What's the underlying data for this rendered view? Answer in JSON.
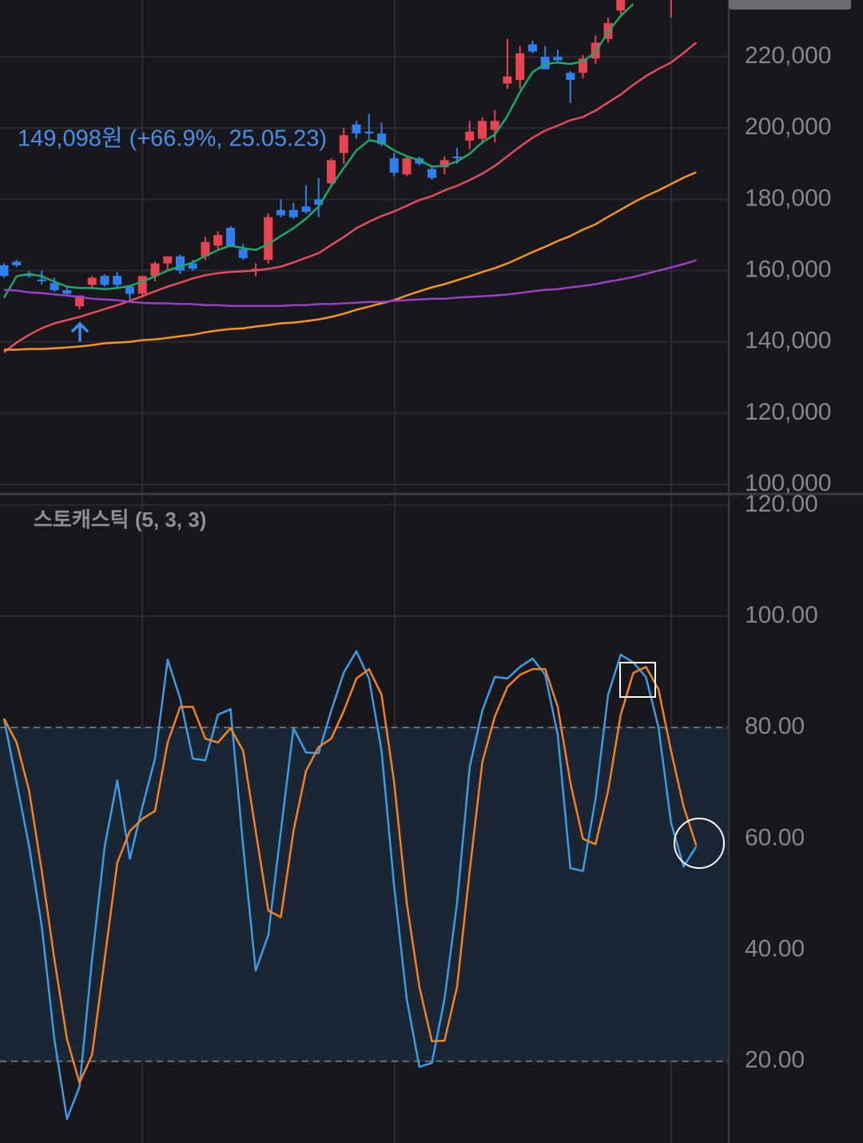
{
  "chart_data": [
    {
      "type": "candlestick",
      "annotations": [
        {
          "text": "149,098원 (+66.9%, 25.05.23)"
        }
      ],
      "categories": [
        null,
        null,
        null,
        null,
        null,
        null,
        null,
        null,
        null,
        null,
        null,
        null,
        null,
        null,
        null,
        null,
        null,
        null,
        null,
        null,
        null,
        null,
        null,
        null,
        null,
        null,
        null,
        null,
        null,
        null,
        null,
        null,
        null,
        null,
        null,
        null,
        null,
        null,
        null,
        null,
        null,
        null,
        null,
        null,
        null,
        null,
        null,
        null,
        null,
        null,
        null,
        null,
        null,
        null,
        null,
        null
      ],
      "open": [
        161500,
        162500,
        159000,
        157500,
        156500,
        154500,
        150000,
        156000,
        158500,
        158500,
        155500,
        153500,
        158500,
        162000,
        164000,
        162000,
        164000,
        167000,
        172000,
        166000,
        160000,
        163000,
        177000,
        177000,
        178000,
        180000,
        184500,
        193000,
        201000,
        199000,
        198500,
        191500,
        187000,
        191500,
        188500,
        189000,
        192000,
        196500,
        197000,
        199500,
        212500,
        213500,
        223500,
        220000,
        220000,
        215500,
        215500,
        219500,
        225000,
        233000,
        null,
        null,
        null,
        236500,
        null,
        null
      ],
      "high": [
        162000,
        163000,
        160000,
        160000,
        158000,
        155500,
        153000,
        158500,
        159000,
        159500,
        156000,
        158500,
        162500,
        164000,
        164500,
        163000,
        169500,
        171000,
        172500,
        167500,
        162000,
        176000,
        180000,
        179000,
        184000,
        186000,
        191500,
        200000,
        202000,
        204000,
        201500,
        193000,
        192000,
        192000,
        189500,
        192000,
        194500,
        202000,
        203000,
        205000,
        225000,
        223000,
        224500,
        223000,
        222000,
        216000,
        220500,
        226000,
        231000,
        236500,
        null,
        null,
        null,
        240000,
        null,
        null
      ],
      "low": [
        158000,
        161000,
        158000,
        156000,
        154000,
        153000,
        149098,
        155000,
        155500,
        155000,
        151000,
        152500,
        157000,
        160000,
        159000,
        160000,
        163000,
        166000,
        166500,
        163000,
        158500,
        162000,
        175000,
        174500,
        176000,
        175000,
        183500,
        190000,
        197000,
        197000,
        195000,
        186500,
        186500,
        189500,
        185500,
        187000,
        190000,
        194000,
        195500,
        196000,
        211000,
        211000,
        221000,
        216500,
        218500,
        207000,
        214000,
        218000,
        224000,
        232000,
        null,
        null,
        null,
        231000,
        null,
        null
      ],
      "close": [
        158500,
        161500,
        158500,
        157000,
        154500,
        153500,
        153000,
        158000,
        156000,
        156000,
        153500,
        158500,
        162000,
        164000,
        160000,
        160500,
        168000,
        170000,
        167000,
        163500,
        160500,
        175000,
        175500,
        175000,
        176500,
        178500,
        191000,
        198000,
        198500,
        198500,
        195500,
        187500,
        191500,
        190000,
        186000,
        191000,
        191800,
        199000,
        202000,
        202000,
        214500,
        221000,
        221500,
        216500,
        219000,
        213500,
        219500,
        224000,
        229500,
        236000,
        null,
        null,
        null,
        239000,
        null,
        null
      ],
      "up_color": "#e8434f",
      "down_color": "#2f7ff0",
      "series": [
        {
          "color": "#1ea86a",
          "values": [
            152400,
            158400,
            159100,
            158400,
            156900,
            155500,
            155100,
            155100,
            154800,
            155100,
            155700,
            156900,
            158400,
            160000,
            161100,
            162300,
            164100,
            165800,
            167000,
            166300,
            165800,
            167400,
            169700,
            171900,
            174600,
            178000,
            183800,
            188800,
            193700,
            196600,
            196000,
            193700,
            192100,
            191000,
            189200,
            189400,
            190600,
            192800,
            196000,
            198200,
            203400,
            210100,
            215700,
            218000,
            218400,
            218000,
            218700,
            221300,
            227000,
            231500,
            234800,
            null,
            null,
            null,
            null,
            null
          ]
        },
        {
          "color": "#e84a5f",
          "values": [
            137100,
            139800,
            142000,
            143800,
            145200,
            146100,
            147000,
            148100,
            149200,
            150300,
            151500,
            152800,
            154200,
            155500,
            156600,
            157800,
            158700,
            159300,
            159600,
            159800,
            160000,
            160500,
            161100,
            162300,
            163600,
            164900,
            167200,
            169400,
            171900,
            173700,
            175300,
            176600,
            178200,
            179800,
            180900,
            182500,
            183800,
            185400,
            187200,
            189400,
            192100,
            194800,
            197300,
            199300,
            200700,
            202200,
            203100,
            204900,
            207200,
            209400,
            212100,
            214600,
            216600,
            218400,
            221100,
            224000
          ]
        },
        {
          "color": "#f7931e",
          "values": [
            137800,
            137800,
            138000,
            138000,
            138200,
            138400,
            138700,
            139100,
            139600,
            139800,
            140000,
            140500,
            140700,
            141100,
            141600,
            142000,
            142700,
            143200,
            143600,
            143800,
            144300,
            144700,
            145200,
            145400,
            145800,
            146300,
            147000,
            147900,
            149000,
            149900,
            150800,
            151700,
            153000,
            154200,
            155300,
            156200,
            157300,
            158400,
            159600,
            160700,
            162000,
            163600,
            165200,
            166700,
            168300,
            169700,
            171500,
            173000,
            175100,
            177100,
            179100,
            180900,
            182500,
            184300,
            186100,
            187600
          ]
        },
        {
          "color": "#9b3fc8",
          "values": [
            154600,
            154400,
            153900,
            153700,
            153300,
            153000,
            152600,
            152100,
            151900,
            151700,
            151200,
            151000,
            150800,
            150800,
            150600,
            150600,
            150300,
            150300,
            150100,
            150100,
            150100,
            150100,
            150100,
            150300,
            150300,
            150600,
            150600,
            150800,
            151000,
            151200,
            151200,
            151500,
            151700,
            151900,
            152100,
            152100,
            152400,
            152600,
            152800,
            153000,
            153300,
            153700,
            154200,
            154600,
            154800,
            155300,
            155700,
            156200,
            156900,
            157500,
            158200,
            159100,
            160000,
            160900,
            161800,
            162900
          ]
        }
      ],
      "ylim": [
        98650,
        235950
      ],
      "yticks": [
        {
          "value": 100000,
          "label": "100,000"
        },
        {
          "value": 120000,
          "label": "120,000"
        },
        {
          "value": 140000,
          "label": "140,000"
        },
        {
          "value": 160000,
          "label": "160,000"
        },
        {
          "value": 180000,
          "label": "180,000"
        },
        {
          "value": 200000,
          "label": "200,000"
        },
        {
          "value": 220000,
          "label": "220,000"
        }
      ],
      "grid": true
    },
    {
      "type": "line",
      "title": "스토캐스틱 (5, 3, 3)",
      "categories": [
        null,
        null,
        null,
        null,
        null,
        null,
        null,
        null,
        null,
        null,
        null,
        null,
        null,
        null,
        null,
        null,
        null,
        null,
        null,
        null,
        null,
        null,
        null,
        null,
        null,
        null,
        null,
        null,
        null,
        null,
        null,
        null,
        null,
        null,
        null,
        null,
        null,
        null,
        null,
        null,
        null,
        null,
        null,
        null,
        null,
        null,
        null,
        null,
        null,
        null,
        null,
        null,
        null,
        null,
        null,
        null
      ],
      "series": [
        {
          "color": "#3b9de8",
          "values": [
            81.6,
            70.1,
            58.6,
            44.2,
            24.0,
            9.6,
            15.4,
            38.4,
            58.6,
            70.5,
            56.4,
            65.8,
            74.4,
            92.2,
            85.2,
            74.4,
            74.1,
            82.3,
            83.3,
            58.6,
            36.3,
            42.7,
            61.4,
            79.9,
            75.5,
            75.4,
            83.0,
            89.9,
            93.7,
            88.8,
            75.8,
            51.4,
            31.2,
            19.0,
            19.7,
            31.2,
            48.5,
            72.9,
            83.0,
            89.1,
            88.8,
            90.9,
            92.4,
            89.5,
            78.7,
            54.7,
            54.2,
            67.2,
            85.9,
            93.1,
            91.7,
            89.1,
            80.1,
            62.9,
            55.0,
            58.6
          ]
        },
        {
          "color": "#f58220",
          "values": [
            81.6,
            77.3,
            68.6,
            54.2,
            38.4,
            24.0,
            16.1,
            21.2,
            38.4,
            55.7,
            61.4,
            63.6,
            65.0,
            77.3,
            83.7,
            83.7,
            78.0,
            77.3,
            79.9,
            75.8,
            61.4,
            47.1,
            45.9,
            61.4,
            72.2,
            76.5,
            78.0,
            83.0,
            88.8,
            90.5,
            85.9,
            70.1,
            48.5,
            33.4,
            23.6,
            23.7,
            33.4,
            54.2,
            73.7,
            82.0,
            87.3,
            89.5,
            90.5,
            90.5,
            83.7,
            70.1,
            60.0,
            59.0,
            68.6,
            82.3,
            89.8,
            90.9,
            86.9,
            75.8,
            65.8,
            58.8
          ]
        }
      ],
      "band": [
        20,
        80
      ],
      "band_color": "#1b2635",
      "ylim": [
        5.3,
        121.7
      ],
      "yticks": [
        {
          "value": 20,
          "label": "20.00"
        },
        {
          "value": 40,
          "label": "40.00"
        },
        {
          "value": 60,
          "label": "60.00"
        },
        {
          "value": 80,
          "label": "80.00"
        },
        {
          "value": 100,
          "label": "100.00"
        },
        {
          "value": 120,
          "label": "120.00"
        }
      ],
      "grid": true
    }
  ]
}
